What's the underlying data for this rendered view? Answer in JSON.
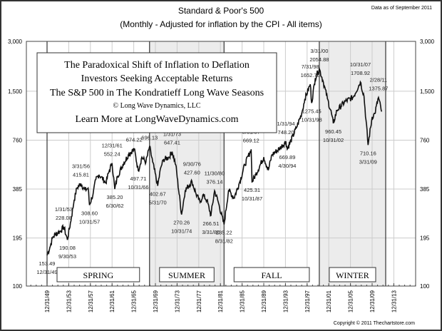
{
  "chart_data": {
    "type": "line",
    "title": "Standard & Poor's 500",
    "subtitle": "(Monthly - Adjusted for inflation by the CPI - All items)",
    "data_note": "Data as of September 2011",
    "copyright": "Copyright © 2011 Thechartstore.com",
    "yscale": "log",
    "ylim": [
      100,
      3000
    ],
    "yticks": [
      {
        "v": 3000,
        "label": "3,000"
      },
      {
        "v": 1500,
        "label": "1,500"
      },
      {
        "v": 760,
        "label": "760"
      },
      {
        "v": 385,
        "label": "385"
      },
      {
        "v": 195,
        "label": "195"
      },
      {
        "v": 100,
        "label": "100"
      }
    ],
    "xticks": [
      "12/31/49",
      "12/31/53",
      "12/31/57",
      "12/31/61",
      "12/31/65",
      "12/31/69",
      "12/31/73",
      "12/31/77",
      "12/31/81",
      "12/31/85",
      "12/31/89",
      "12/31/93",
      "12/31/97",
      "12/31/01",
      "12/31/05",
      "12/31/09",
      "12/31/13"
    ],
    "infobox": [
      "The Paradoxical Shift of Inflation to Deflation",
      "Investors Seeking Acceptable Returns",
      "The S&P 500 in The Kondratieff Long Wave Seasons",
      "© Long Wave Dynamics, LLC",
      "Learn More at LongWaveDynamics.com"
    ],
    "seasons": [
      {
        "name": "SPRING",
        "start": "12/31/49",
        "end": "11/30/68",
        "shaded": false
      },
      {
        "name": "SUMMER",
        "start": "11/30/68",
        "end": "8/31/82",
        "shaded": true
      },
      {
        "name": "FALL",
        "start": "8/31/82",
        "end": "3/31/00",
        "shaded": false
      },
      {
        "name": "WINTER",
        "start": "3/31/00",
        "end": "6/30/12",
        "shaded": true
      }
    ],
    "series": [
      [
        "12/31/49",
        153.49
      ],
      [
        "6/30/50",
        170
      ],
      [
        "12/31/50",
        195
      ],
      [
        "6/30/51",
        205
      ],
      [
        "12/31/51",
        210
      ],
      [
        "6/30/52",
        215
      ],
      [
        "1/31/53",
        228.08
      ],
      [
        "9/30/53",
        190.08
      ],
      [
        "6/30/54",
        260
      ],
      [
        "12/31/54",
        330
      ],
      [
        "6/30/55",
        390
      ],
      [
        "3/31/56",
        415.81
      ],
      [
        "12/31/56",
        380
      ],
      [
        "7/31/57",
        390
      ],
      [
        "10/31/57",
        308.6
      ],
      [
        "6/30/58",
        360
      ],
      [
        "12/31/58",
        440
      ],
      [
        "7/31/59",
        470
      ],
      [
        "12/31/59",
        455
      ],
      [
        "10/31/60",
        420
      ],
      [
        "6/30/61",
        500
      ],
      [
        "12/31/61",
        552.24
      ],
      [
        "6/30/62",
        385.2
      ],
      [
        "12/31/62",
        460
      ],
      [
        "12/31/63",
        540
      ],
      [
        "12/31/64",
        620
      ],
      [
        "1/31/66",
        674.22
      ],
      [
        "10/31/66",
        497.71
      ],
      [
        "6/30/67",
        600
      ],
      [
        "3/31/68",
        560
      ],
      [
        "11/30/68",
        696.13
      ],
      [
        "6/30/69",
        560
      ],
      [
        "5/31/70",
        402.67
      ],
      [
        "12/31/70",
        520
      ],
      [
        "6/30/71",
        580
      ],
      [
        "6/30/72",
        600
      ],
      [
        "1/31/73",
        647.41
      ],
      [
        "9/30/73",
        540
      ],
      [
        "10/31/74",
        270.26
      ],
      [
        "6/30/75",
        380
      ],
      [
        "9/30/76",
        427.6
      ],
      [
        "6/30/77",
        360
      ],
      [
        "3/31/78",
        320
      ],
      [
        "9/30/78",
        355
      ],
      [
        "6/30/79",
        330
      ],
      [
        "3/31/80",
        266.51
      ],
      [
        "11/30/80",
        376.14
      ],
      [
        "6/30/81",
        330
      ],
      [
        "8/31/82",
        235.22
      ],
      [
        "6/30/83",
        380
      ],
      [
        "6/30/84",
        340
      ],
      [
        "6/30/85",
        420
      ],
      [
        "6/30/86",
        540
      ],
      [
        "8/31/87",
        669.12
      ],
      [
        "10/31/87",
        425.31
      ],
      [
        "6/30/88",
        470
      ],
      [
        "12/31/89",
        600
      ],
      [
        "10/31/90",
        500
      ],
      [
        "6/30/91",
        620
      ],
      [
        "12/31/92",
        680
      ],
      [
        "1/31/94",
        748.2
      ],
      [
        "4/30/94",
        669.89
      ],
      [
        "12/31/95",
        900
      ],
      [
        "12/31/96",
        1100
      ],
      [
        "7/31/97",
        1350
      ],
      [
        "7/31/98",
        1652.7
      ],
      [
        "10/31/98",
        1275.45
      ],
      [
        "6/30/99",
        1800
      ],
      [
        "3/31/00",
        2054.88
      ],
      [
        "12/31/00",
        1700
      ],
      [
        "9/30/01",
        1350
      ],
      [
        "6/30/02",
        1100
      ],
      [
        "10/31/02",
        960.45
      ],
      [
        "6/30/03",
        1150
      ],
      [
        "12/31/04",
        1300
      ],
      [
        "6/30/06",
        1380
      ],
      [
        "10/31/07",
        1708.92
      ],
      [
        "6/30/08",
        1400
      ],
      [
        "3/31/09",
        710.16
      ],
      [
        "12/31/09",
        1050
      ],
      [
        "6/30/10",
        1100
      ],
      [
        "2/28/11",
        1375.87
      ],
      [
        "9/30/11",
        1130
      ]
    ],
    "annotations": [
      {
        "date": "12/31/49",
        "value": "153.49",
        "pos": "below"
      },
      {
        "date": "1/31/53",
        "value": "228.08",
        "pos": "above"
      },
      {
        "date": "9/30/53",
        "value": "190.08",
        "pos": "below"
      },
      {
        "date": "3/31/56",
        "value": "415.81",
        "pos": "above"
      },
      {
        "date": "10/31/57",
        "value": "308.60",
        "pos": "below"
      },
      {
        "date": "12/31/61",
        "value": "552.24",
        "pos": "above"
      },
      {
        "date": "6/30/62",
        "value": "385.20",
        "pos": "below"
      },
      {
        "date": "1/31/66",
        "value": "674.22",
        "pos": "above"
      },
      {
        "date": "10/31/66",
        "value": "497.71",
        "pos": "below"
      },
      {
        "date": "11/30/68",
        "value": "696.13",
        "pos": "above"
      },
      {
        "date": "5/31/70",
        "value": "402.67",
        "pos": "below"
      },
      {
        "date": "1/31/73",
        "value": "647.41",
        "pos": "above"
      },
      {
        "date": "10/31/74",
        "value": "270.26",
        "pos": "below"
      },
      {
        "date": "9/30/76",
        "value": "427.60",
        "pos": "above"
      },
      {
        "date": "3/31/80",
        "value": "266.51",
        "pos": "below"
      },
      {
        "date": "11/30/80",
        "value": "376.14",
        "pos": "above"
      },
      {
        "date": "8/31/82",
        "value": "235.22",
        "pos": "below"
      },
      {
        "date": "8/31/87",
        "value": "669.12",
        "pos": "above"
      },
      {
        "date": "10/31/87",
        "value": "425.31",
        "pos": "below"
      },
      {
        "date": "1/31/94",
        "value": "748.20",
        "pos": "above"
      },
      {
        "date": "4/30/94",
        "value": "669.89",
        "pos": "below"
      },
      {
        "date": "7/31/98",
        "value": "1652.70",
        "pos": "above"
      },
      {
        "date": "10/31/98",
        "value": "1275.45",
        "pos": "below"
      },
      {
        "date": "3/31/00",
        "value": "2054.88",
        "pos": "above"
      },
      {
        "date": "10/31/02",
        "value": "960.45",
        "pos": "below"
      },
      {
        "date": "10/31/07",
        "value": "1708.92",
        "pos": "above"
      },
      {
        "date": "3/31/09",
        "value": "710.16",
        "pos": "below"
      },
      {
        "date": "2/28/11",
        "value": "1375.87",
        "pos": "above"
      }
    ]
  }
}
